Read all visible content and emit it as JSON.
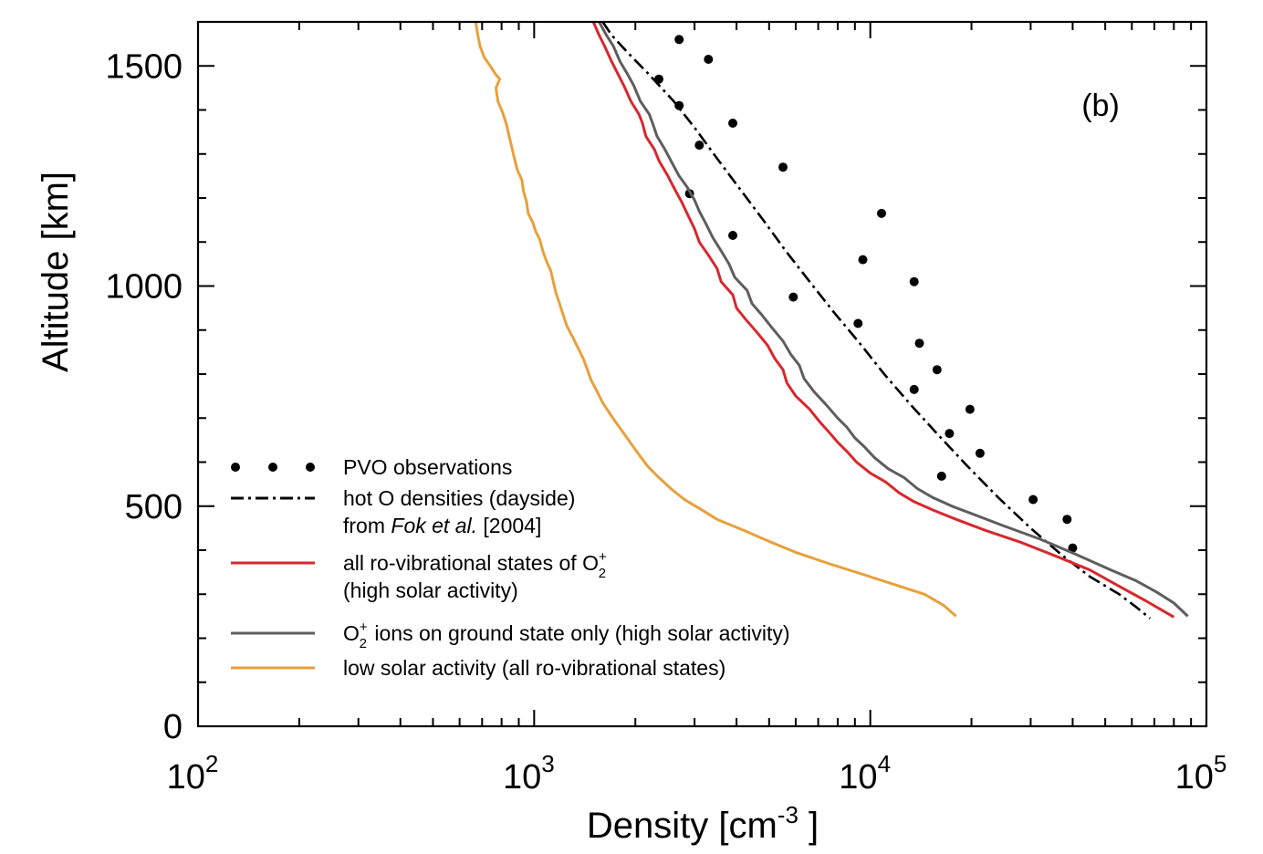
{
  "chart_data": {
    "type": "line",
    "panel_label": "(b)",
    "xlabel": "Density [cm",
    "xlabel_sup": "-3",
    "xlabel_end": " ]",
    "ylabel": "Altitude [km]",
    "x_scale": "log",
    "xlim": [
      100,
      100000
    ],
    "ylim": [
      0,
      1600
    ],
    "x_ticks": [
      {
        "value": 100,
        "base": "10",
        "exp": "2"
      },
      {
        "value": 1000,
        "base": "10",
        "exp": "3"
      },
      {
        "value": 10000,
        "base": "10",
        "exp": "4"
      },
      {
        "value": 100000,
        "base": "10",
        "exp": "5"
      }
    ],
    "y_ticks": [
      {
        "value": 0,
        "label": "0"
      },
      {
        "value": 500,
        "label": "500"
      },
      {
        "value": 1000,
        "label": "1000"
      },
      {
        "value": 1500,
        "label": "1500"
      }
    ],
    "grid": false,
    "legend_position": "bottom-left",
    "legend": [
      {
        "key": "pvo",
        "lines": [
          "PVO observations"
        ]
      },
      {
        "key": "hoto",
        "lines": [
          "hot O densities (dayside)",
          "from |Fok et al.| [2004]"
        ]
      },
      {
        "key": "allro",
        "lines": [
          "all ro-vibrational states of O_2^+",
          "(high solar activity)"
        ]
      },
      {
        "key": "ground",
        "lines": [
          "O_2^+ ions on ground state only (high solar activity)"
        ]
      },
      {
        "key": "low",
        "lines": [
          "low solar activity (all ro-vibrational states)"
        ]
      }
    ],
    "colors": {
      "pvo": "#000000",
      "hoto": "#000000",
      "allro": "#d7282e",
      "ground": "#5e5e5e",
      "low": "#e8a03c"
    },
    "series": [
      {
        "key": "pvo",
        "style": "points",
        "points": [
          [
            2700,
            1560
          ],
          [
            3300,
            1515
          ],
          [
            2350,
            1470
          ],
          [
            2700,
            1410
          ],
          [
            3900,
            1370
          ],
          [
            3100,
            1320
          ],
          [
            5500,
            1270
          ],
          [
            2900,
            1210
          ],
          [
            10800,
            1165
          ],
          [
            3900,
            1115
          ],
          [
            9500,
            1060
          ],
          [
            13500,
            1010
          ],
          [
            5900,
            975
          ],
          [
            9200,
            915
          ],
          [
            14000,
            870
          ],
          [
            15800,
            810
          ],
          [
            13500,
            765
          ],
          [
            19800,
            720
          ],
          [
            17200,
            665
          ],
          [
            21200,
            620
          ],
          [
            16300,
            568
          ],
          [
            30500,
            515
          ],
          [
            38500,
            470
          ],
          [
            40000,
            405
          ]
        ]
      },
      {
        "key": "hoto",
        "style": "dashdot",
        "points": [
          [
            1600,
            1600
          ],
          [
            1700,
            1570
          ],
          [
            1900,
            1530
          ],
          [
            2200,
            1480
          ],
          [
            2600,
            1420
          ],
          [
            3000,
            1360
          ],
          [
            3500,
            1290
          ],
          [
            4100,
            1220
          ],
          [
            4800,
            1150
          ],
          [
            5600,
            1080
          ],
          [
            6600,
            1010
          ],
          [
            7800,
            940
          ],
          [
            9300,
            870
          ],
          [
            11000,
            800
          ],
          [
            13200,
            730
          ],
          [
            16000,
            660
          ],
          [
            19500,
            590
          ],
          [
            24000,
            520
          ],
          [
            30000,
            450
          ],
          [
            37000,
            390
          ],
          [
            45000,
            340
          ],
          [
            55000,
            300
          ],
          [
            62000,
            270
          ],
          [
            68000,
            245
          ]
        ]
      },
      {
        "key": "allro",
        "style": "line",
        "points": [
          [
            1500,
            1600
          ],
          [
            1560,
            1570
          ],
          [
            1620,
            1545
          ],
          [
            1700,
            1510
          ],
          [
            1780,
            1480
          ],
          [
            1850,
            1455
          ],
          [
            1940,
            1420
          ],
          [
            2050,
            1390
          ],
          [
            2100,
            1370
          ],
          [
            2150,
            1340
          ],
          [
            2280,
            1310
          ],
          [
            2350,
            1285
          ],
          [
            2500,
            1250
          ],
          [
            2620,
            1220
          ],
          [
            2750,
            1190
          ],
          [
            2850,
            1165
          ],
          [
            3000,
            1130
          ],
          [
            3100,
            1100
          ],
          [
            3300,
            1070
          ],
          [
            3500,
            1040
          ],
          [
            3600,
            1010
          ],
          [
            3900,
            980
          ],
          [
            4000,
            950
          ],
          [
            4250,
            925
          ],
          [
            4600,
            895
          ],
          [
            4950,
            865
          ],
          [
            5200,
            835
          ],
          [
            5500,
            810
          ],
          [
            5650,
            780
          ],
          [
            6000,
            750
          ],
          [
            6600,
            720
          ],
          [
            7100,
            690
          ],
          [
            7500,
            670
          ],
          [
            8000,
            645
          ],
          [
            8500,
            625
          ],
          [
            9100,
            600
          ],
          [
            10000,
            575
          ],
          [
            11100,
            555
          ],
          [
            12200,
            530
          ],
          [
            13500,
            510
          ],
          [
            15500,
            490
          ],
          [
            18000,
            470
          ],
          [
            22000,
            445
          ],
          [
            28000,
            418
          ],
          [
            36000,
            385
          ],
          [
            45000,
            355
          ],
          [
            55000,
            318
          ],
          [
            66000,
            285
          ],
          [
            80000,
            248
          ]
        ]
      },
      {
        "key": "ground",
        "style": "line",
        "points": [
          [
            1560,
            1600
          ],
          [
            1640,
            1570
          ],
          [
            1720,
            1545
          ],
          [
            1800,
            1510
          ],
          [
            1900,
            1480
          ],
          [
            1980,
            1455
          ],
          [
            2070,
            1420
          ],
          [
            2200,
            1390
          ],
          [
            2250,
            1370
          ],
          [
            2320,
            1340
          ],
          [
            2450,
            1310
          ],
          [
            2550,
            1285
          ],
          [
            2700,
            1250
          ],
          [
            2850,
            1225
          ],
          [
            3000,
            1195
          ],
          [
            3100,
            1170
          ],
          [
            3250,
            1140
          ],
          [
            3400,
            1110
          ],
          [
            3600,
            1080
          ],
          [
            3800,
            1050
          ],
          [
            3950,
            1020
          ],
          [
            4300,
            990
          ],
          [
            4450,
            960
          ],
          [
            4750,
            935
          ],
          [
            5100,
            905
          ],
          [
            5500,
            875
          ],
          [
            5800,
            845
          ],
          [
            6150,
            820
          ],
          [
            6350,
            790
          ],
          [
            6800,
            760
          ],
          [
            7400,
            730
          ],
          [
            8000,
            700
          ],
          [
            8500,
            680
          ],
          [
            9000,
            655
          ],
          [
            9600,
            635
          ],
          [
            10300,
            610
          ],
          [
            11300,
            585
          ],
          [
            12600,
            565
          ],
          [
            13800,
            540
          ],
          [
            15300,
            520
          ],
          [
            17500,
            500
          ],
          [
            20500,
            480
          ],
          [
            25000,
            455
          ],
          [
            32000,
            425
          ],
          [
            41000,
            390
          ],
          [
            52000,
            355
          ],
          [
            62000,
            330
          ],
          [
            71000,
            305
          ],
          [
            80000,
            280
          ],
          [
            88000,
            250
          ]
        ]
      },
      {
        "key": "low",
        "style": "line",
        "points": [
          [
            670,
            1600
          ],
          [
            680,
            1570
          ],
          [
            690,
            1545
          ],
          [
            710,
            1520
          ],
          [
            740,
            1500
          ],
          [
            770,
            1480
          ],
          [
            790,
            1470
          ],
          [
            770,
            1450
          ],
          [
            780,
            1420
          ],
          [
            805,
            1395
          ],
          [
            825,
            1370
          ],
          [
            840,
            1345
          ],
          [
            855,
            1320
          ],
          [
            870,
            1295
          ],
          [
            890,
            1265
          ],
          [
            920,
            1240
          ],
          [
            930,
            1215
          ],
          [
            950,
            1190
          ],
          [
            960,
            1165
          ],
          [
            990,
            1145
          ],
          [
            1010,
            1125
          ],
          [
            1040,
            1105
          ],
          [
            1060,
            1080
          ],
          [
            1090,
            1055
          ],
          [
            1120,
            1035
          ],
          [
            1140,
            1010
          ],
          [
            1160,
            985
          ],
          [
            1190,
            960
          ],
          [
            1220,
            935
          ],
          [
            1250,
            910
          ],
          [
            1300,
            885
          ],
          [
            1350,
            860
          ],
          [
            1400,
            835
          ],
          [
            1440,
            810
          ],
          [
            1480,
            785
          ],
          [
            1540,
            760
          ],
          [
            1600,
            735
          ],
          [
            1680,
            710
          ],
          [
            1770,
            685
          ],
          [
            1850,
            665
          ],
          [
            1950,
            640
          ],
          [
            2060,
            615
          ],
          [
            2180,
            590
          ],
          [
            2350,
            565
          ],
          [
            2550,
            540
          ],
          [
            2800,
            515
          ],
          [
            3100,
            495
          ],
          [
            3500,
            470
          ],
          [
            4200,
            445
          ],
          [
            5000,
            420
          ],
          [
            6000,
            395
          ],
          [
            7500,
            370
          ],
          [
            9500,
            345
          ],
          [
            12000,
            320
          ],
          [
            14500,
            300
          ],
          [
            16500,
            275
          ],
          [
            18000,
            250
          ]
        ]
      }
    ]
  }
}
